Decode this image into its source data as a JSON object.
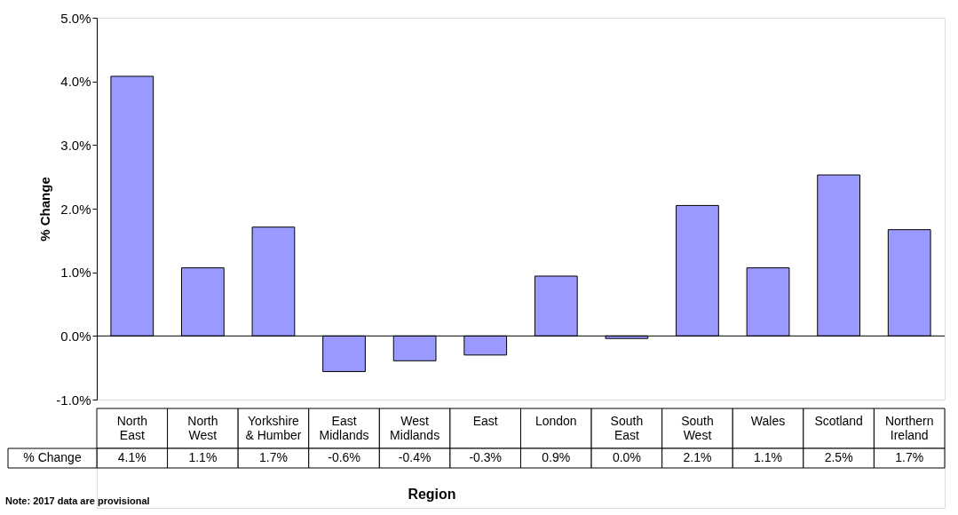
{
  "chart_data": {
    "type": "bar",
    "xlabel": "Region",
    "ylabel": "% Change",
    "categories": [
      "North East",
      "North West",
      "Yorkshire & Humber",
      "East Midlands",
      "West Midlands",
      "East",
      "London",
      "South East",
      "South West",
      "Wales",
      "Scotland",
      "Northern Ireland"
    ],
    "series": [
      {
        "name": "% Change",
        "color": "#9999ff",
        "values": [
          4.08,
          1.07,
          1.71,
          -0.56,
          -0.39,
          -0.3,
          0.94,
          -0.04,
          2.05,
          1.07,
          2.53,
          1.67
        ],
        "value_labels": [
          "4.1%",
          "1.1%",
          "1.7%",
          "-0.6%",
          "-0.4%",
          "-0.3%",
          "0.9%",
          "0.0%",
          "2.1%",
          "1.1%",
          "2.5%",
          "1.7%"
        ]
      }
    ],
    "ylim": [
      -1,
      5
    ],
    "yticks": [
      {
        "value": -1,
        "label": "-1.0%"
      },
      {
        "value": 0,
        "label": "0.0%"
      },
      {
        "value": 1,
        "label": "1.0%"
      },
      {
        "value": 2,
        "label": "2.0%"
      },
      {
        "value": 3,
        "label": "3.0%"
      },
      {
        "value": 4,
        "label": "4.0%"
      },
      {
        "value": 5,
        "label": "5.0%"
      }
    ],
    "ref_lines": [
      {
        "axis": "y",
        "value": 0,
        "color": "#000000"
      }
    ],
    "annotations": [
      "Note: 2017 data are provisional"
    ],
    "grid": false
  }
}
